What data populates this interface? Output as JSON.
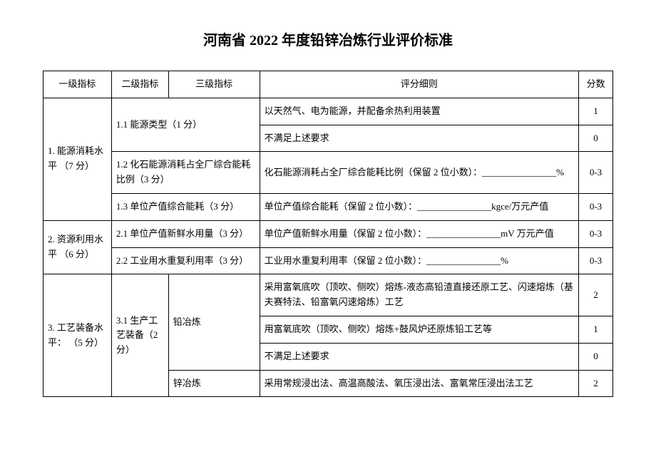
{
  "title": "河南省 2022 年度铅锌冶炼行业评价标准",
  "header": {
    "l1": "一级指标",
    "l2": "二级指标",
    "l3": "三级指标",
    "detail": "评分细则",
    "score": "分数"
  },
  "rows": {
    "r1": {
      "l1": "1. 能源消耗水平\n（7 分）",
      "l2a": "1.1 能源类型（1 分）",
      "d1": "以天然气、电为能源，并配备余热利用装置",
      "s1": "1",
      "d2": "不满足上述要求",
      "s2": "0",
      "l2b": "1.2 化石能源消耗占全厂综合能耗比例（3 分）",
      "d3": "化石能源消耗占全厂综合能耗比例（保留 2 位小数）：________________%",
      "s3": "0-3",
      "l2c": "1.3 单位产值综合能耗（3 分）",
      "d4": "单位产值综合能耗（保留 2 位小数）：________________kgce/万元产值",
      "s4": "0-3"
    },
    "r2": {
      "l1": "2. 资源利用水平\n（6 分）",
      "l2a": "2.1 单位产值新鲜水用量（3 分）",
      "d1": "单位产值新鲜水用量（保留 2 位小数）：________________mV 万元产值",
      "s1": "0-3",
      "l2b": "2.2 工业用水重复利用率（3 分）",
      "d2": "工业用水重复利用率（保留 2 位小数）：________________%",
      "s2": "0-3"
    },
    "r3": {
      "l1": "3. 工艺装备水平：\n（5 分）",
      "l2": "3.1 生产工艺装备（2 分）",
      "l3a": "铅冶炼",
      "d1": "采用富氧底吹（顶吹、侧吹）熔炼-液态高铅渣直接还原工艺、闪速熔炼（基夫赛特法、铅富氧闪速熔炼）工艺",
      "s1": "2",
      "d2": "用富氧底吹（顶吹、侧吹）熔炼+鼓风炉还原炼铅工艺等",
      "s2": "1",
      "d3": "不满足上述要求",
      "s3": "0",
      "l3b": "锌冶炼",
      "d4": "采用常规浸出法、高温高酸法、氧压浸出法、富氧常压浸出法工艺",
      "s4": "2"
    }
  }
}
